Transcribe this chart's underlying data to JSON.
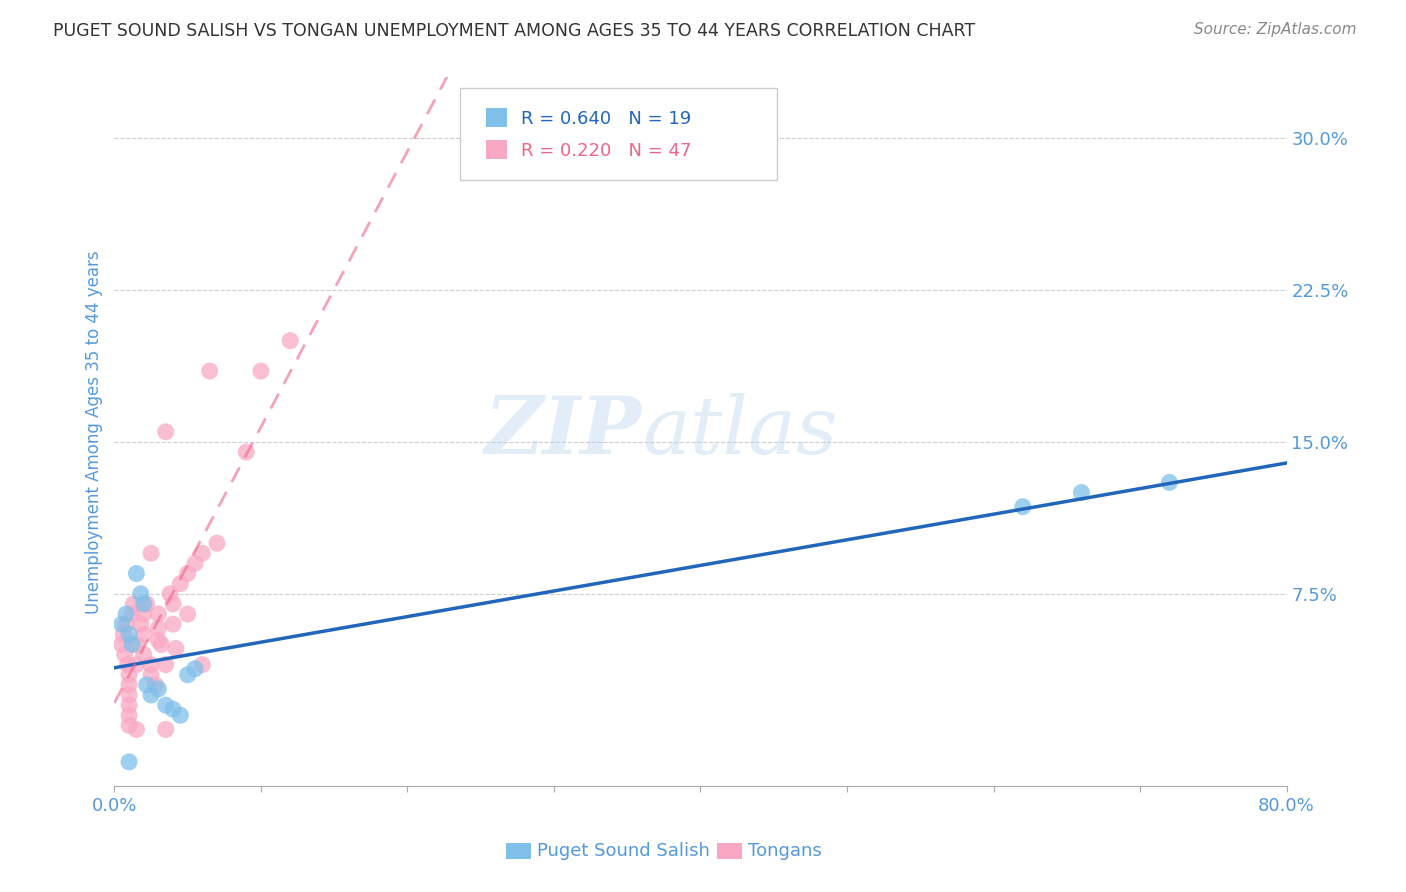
{
  "title": "PUGET SOUND SALISH VS TONGAN UNEMPLOYMENT AMONG AGES 35 TO 44 YEARS CORRELATION CHART",
  "source": "Source: ZipAtlas.com",
  "ylabel": "Unemployment Among Ages 35 to 44 years",
  "xlim": [
    0.0,
    0.8
  ],
  "ylim": [
    -0.02,
    0.33
  ],
  "xticks": [
    0.0,
    0.1,
    0.2,
    0.3,
    0.4,
    0.5,
    0.6,
    0.7,
    0.8
  ],
  "xticklabels": [
    "0.0%",
    "",
    "",
    "",
    "",
    "",
    "",
    "",
    "80.0%"
  ],
  "yticks": [
    0.075,
    0.15,
    0.225,
    0.3
  ],
  "yticklabels": [
    "7.5%",
    "15.0%",
    "22.5%",
    "30.0%"
  ],
  "background_color": "#ffffff",
  "grid_color": "#cccccc",
  "title_color": "#333333",
  "axis_label_color": "#5599dd",
  "tick_label_color": "#5599dd",
  "puget_color": "#7fbfea",
  "tongan_color": "#f9a8c4",
  "puget_line_color": "#2266bb",
  "tongan_line_color": "#ee6688",
  "puget_R": 0.64,
  "puget_N": 19,
  "tongan_R": 0.22,
  "tongan_N": 47,
  "watermark_zip": "ZIP",
  "watermark_atlas": "atlas",
  "puget_x": [
    0.005,
    0.008,
    0.01,
    0.012,
    0.015,
    0.018,
    0.02,
    0.022,
    0.025,
    0.03,
    0.035,
    0.04,
    0.045,
    0.05,
    0.055,
    0.01,
    0.62,
    0.66,
    0.72
  ],
  "puget_y": [
    0.06,
    0.065,
    0.055,
    0.05,
    0.085,
    0.075,
    0.07,
    0.03,
    0.025,
    0.028,
    0.02,
    0.018,
    0.015,
    0.035,
    0.038,
    -0.008,
    0.118,
    0.125,
    0.13
  ],
  "tongan_x": [
    0.005,
    0.006,
    0.007,
    0.008,
    0.009,
    0.01,
    0.01,
    0.01,
    0.01,
    0.01,
    0.01,
    0.012,
    0.013,
    0.015,
    0.015,
    0.018,
    0.02,
    0.02,
    0.02,
    0.022,
    0.025,
    0.025,
    0.028,
    0.03,
    0.03,
    0.03,
    0.032,
    0.035,
    0.035,
    0.038,
    0.04,
    0.04,
    0.042,
    0.045,
    0.05,
    0.055,
    0.06,
    0.065,
    0.07,
    0.09,
    0.1,
    0.12,
    0.015,
    0.025,
    0.035,
    0.05,
    0.06
  ],
  "tongan_y": [
    0.05,
    0.055,
    0.045,
    0.06,
    0.04,
    0.035,
    0.03,
    0.025,
    0.02,
    0.015,
    0.01,
    0.065,
    0.07,
    0.05,
    0.008,
    0.06,
    0.065,
    0.055,
    0.045,
    0.07,
    0.04,
    0.035,
    0.03,
    0.065,
    0.058,
    0.052,
    0.05,
    0.04,
    0.008,
    0.075,
    0.07,
    0.06,
    0.048,
    0.08,
    0.085,
    0.09,
    0.095,
    0.185,
    0.1,
    0.145,
    0.185,
    0.2,
    0.04,
    0.095,
    0.155,
    0.065,
    0.04
  ]
}
